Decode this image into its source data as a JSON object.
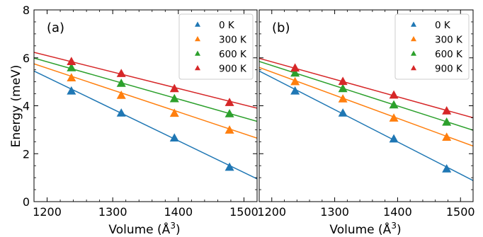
{
  "figure": {
    "ylabel": "Energy (meV)",
    "xlabel_main": "Volume (Å",
    "xlabel_sup": "3",
    "xlabel_close": ")"
  },
  "chart_data": [
    {
      "type": "scatter",
      "panel_label": "(a)",
      "xlim": [
        1180,
        1520
      ],
      "ylim": [
        0,
        8
      ],
      "xticks": [
        1200,
        1300,
        1400,
        1500
      ],
      "yticks": [
        0,
        2,
        4,
        6,
        8
      ],
      "legend_position": "top-right",
      "grid": false,
      "x": [
        1237,
        1313,
        1394,
        1478
      ],
      "series": [
        {
          "name": "0 K",
          "color": "#1f77b4",
          "values": [
            4.6,
            3.68,
            2.64,
            1.42
          ],
          "fit": [
            [
              1180,
              5.45
            ],
            [
              1520,
              0.95
            ]
          ]
        },
        {
          "name": "300 K",
          "color": "#ff7f0e",
          "values": [
            5.15,
            4.42,
            3.67,
            2.97
          ],
          "fit": [
            [
              1180,
              5.75
            ],
            [
              1520,
              2.65
            ]
          ]
        },
        {
          "name": "600 K",
          "color": "#2ca02c",
          "values": [
            5.57,
            4.92,
            4.28,
            3.65
          ],
          "fit": [
            [
              1180,
              5.99
            ],
            [
              1520,
              3.35
            ]
          ]
        },
        {
          "name": "900 K",
          "color": "#d62728",
          "values": [
            5.83,
            5.33,
            4.7,
            4.12
          ],
          "fit": [
            [
              1180,
              6.23
            ],
            [
              1520,
              3.9
            ]
          ]
        }
      ]
    },
    {
      "type": "scatter",
      "panel_label": "(b)",
      "xlim": [
        1180,
        1520
      ],
      "ylim": [
        0,
        8
      ],
      "xticks": [
        1200,
        1300,
        1400,
        1500
      ],
      "yticks": [
        0,
        2,
        4,
        6,
        8
      ],
      "legend_position": "top-right",
      "grid": false,
      "x": [
        1237,
        1313,
        1394,
        1478
      ],
      "series": [
        {
          "name": "0 K",
          "color": "#1f77b4",
          "values": [
            4.6,
            3.68,
            2.6,
            1.35
          ],
          "fit": [
            [
              1180,
              5.45
            ],
            [
              1520,
              0.88
            ]
          ]
        },
        {
          "name": "300 K",
          "color": "#ff7f0e",
          "values": [
            4.99,
            4.27,
            3.47,
            2.67
          ],
          "fit": [
            [
              1180,
              5.6
            ],
            [
              1520,
              2.32
            ]
          ]
        },
        {
          "name": "600 K",
          "color": "#2ca02c",
          "values": [
            5.35,
            4.7,
            4.02,
            3.3
          ],
          "fit": [
            [
              1180,
              5.85
            ],
            [
              1520,
              2.98
            ]
          ]
        },
        {
          "name": "900 K",
          "color": "#d62728",
          "values": [
            5.56,
            5.0,
            4.43,
            3.77
          ],
          "fit": [
            [
              1180,
              5.98
            ],
            [
              1520,
              3.5
            ]
          ]
        }
      ]
    }
  ]
}
